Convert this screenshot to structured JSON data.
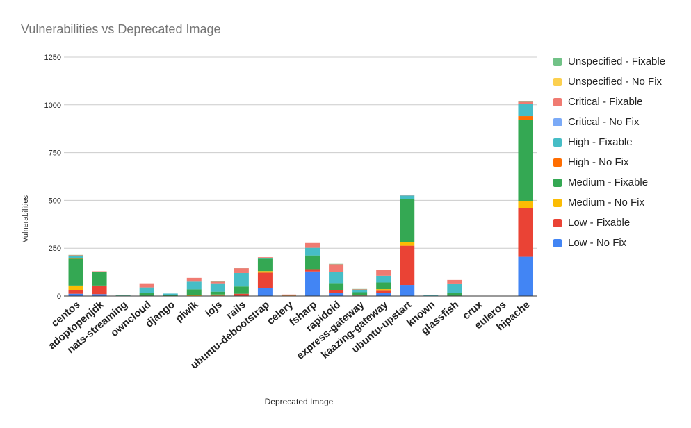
{
  "chart_data": {
    "type": "bar",
    "stacked": true,
    "title": "Vulnerabilities vs Deprecated Image",
    "xlabel": "Deprecated Image",
    "ylabel": "Vulnerabilities",
    "ylim": [
      0,
      1250
    ],
    "yticks": [
      "0",
      "250",
      "500",
      "750",
      "1000",
      "1250"
    ],
    "grid": true,
    "legend_position": "right",
    "categories": [
      "centos",
      "adoptopenjdk",
      "nats-streaming",
      "owncloud",
      "django",
      "piwik",
      "iojs",
      "rails",
      "ubuntu-debootstrap",
      "celery",
      "fsharp",
      "rapidoid",
      "express-gateway",
      "kaazing-gateway",
      "ubuntu-upstart",
      "known",
      "glassfish",
      "crux",
      "euleros",
      "hipache"
    ],
    "series": [
      {
        "name": "Low - No Fix",
        "color": "#4285f4",
        "values": [
          12,
          10,
          0,
          0,
          0,
          0,
          0,
          2,
          42,
          0,
          128,
          18,
          0,
          18,
          58,
          0,
          0,
          0,
          0,
          205
        ]
      },
      {
        "name": "Low - Fixable",
        "color": "#ea4335",
        "values": [
          18,
          45,
          0,
          2,
          0,
          2,
          3,
          10,
          80,
          3,
          12,
          12,
          3,
          10,
          205,
          0,
          2,
          0,
          0,
          255
        ]
      },
      {
        "name": "Medium - No Fix",
        "color": "#fbbc04",
        "values": [
          25,
          0,
          0,
          0,
          0,
          5,
          5,
          0,
          8,
          2,
          0,
          2,
          0,
          8,
          18,
          0,
          0,
          0,
          0,
          35
        ]
      },
      {
        "name": "Medium - Fixable",
        "color": "#34a853",
        "values": [
          140,
          70,
          3,
          15,
          5,
          28,
          15,
          38,
          65,
          0,
          72,
          32,
          17,
          35,
          225,
          2,
          15,
          0,
          0,
          428
        ]
      },
      {
        "name": "High - No Fix",
        "color": "#ff6d01",
        "values": [
          3,
          0,
          0,
          0,
          0,
          0,
          0,
          0,
          0,
          0,
          0,
          0,
          0,
          0,
          0,
          0,
          0,
          0,
          0,
          18
        ]
      },
      {
        "name": "High - Fixable",
        "color": "#46bdc6",
        "values": [
          12,
          2,
          2,
          28,
          8,
          40,
          40,
          70,
          5,
          0,
          40,
          60,
          12,
          35,
          20,
          2,
          45,
          0,
          0,
          63
        ]
      },
      {
        "name": "Critical - No Fix",
        "color": "#7baaf7",
        "values": [
          0,
          0,
          0,
          0,
          0,
          0,
          0,
          0,
          0,
          0,
          0,
          0,
          0,
          0,
          0,
          0,
          0,
          0,
          0,
          0
        ]
      },
      {
        "name": "Critical - Fixable",
        "color": "#f07b72",
        "values": [
          3,
          2,
          0,
          18,
          0,
          20,
          12,
          25,
          3,
          3,
          25,
          42,
          3,
          30,
          2,
          0,
          22,
          0,
          0,
          12
        ]
      },
      {
        "name": "Unspecified - No Fix",
        "color": "#fcd04f",
        "values": [
          0,
          0,
          0,
          0,
          0,
          0,
          0,
          0,
          0,
          0,
          0,
          0,
          0,
          0,
          0,
          0,
          0,
          0,
          0,
          0
        ]
      },
      {
        "name": "Unspecified - Fixable",
        "color": "#71c287",
        "values": [
          2,
          0,
          0,
          0,
          0,
          0,
          2,
          2,
          0,
          0,
          0,
          2,
          2,
          0,
          0,
          0,
          0,
          0,
          0,
          4
        ]
      }
    ]
  }
}
